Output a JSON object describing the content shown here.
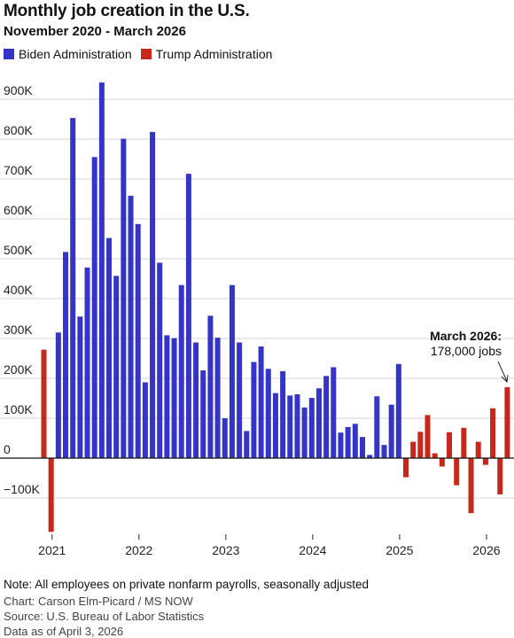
{
  "header": {
    "title": "Monthly job creation in the U.S.",
    "subtitle": "November 2020 - March 2026"
  },
  "legend": {
    "biden_label": "Biden Administration",
    "trump_label": "Trump Administration"
  },
  "colors": {
    "biden": "#3434c8",
    "trump": "#c8281c",
    "grid": "#d4d4d4",
    "zero_line": "#111111"
  },
  "annotation": {
    "title": "March 2026:",
    "text": "178,000 jobs"
  },
  "footer": {
    "note": "Note: All employees on private nonfarm payrolls, seasonally adjusted",
    "credit": "Chart: Carson Elm-Picard / MS NOW",
    "source": "Source:  U.S. Bureau of Labor Statistics",
    "as_of": "Data as of April 3, 2026"
  },
  "chart_data": {
    "type": "bar",
    "title": "Monthly job creation in the U.S.",
    "subtitle": "November 2020 - March 2026",
    "ylim": [
      -190000,
      960000
    ],
    "yticks": [
      -100000,
      0,
      100000,
      200000,
      300000,
      400000,
      500000,
      600000,
      700000,
      800000,
      900000
    ],
    "ytick_labels": [
      "−100K",
      "0",
      "100K",
      "200K",
      "300K",
      "400K",
      "500K",
      "600K",
      "700K",
      "800K",
      "900K"
    ],
    "x_tick_labels": [
      "2021",
      "2022",
      "2023",
      "2024",
      "2025",
      "2026"
    ],
    "grid": true,
    "legend_position": "top-left",
    "x": [
      "2020-11",
      "2020-12",
      "2021-01",
      "2021-02",
      "2021-03",
      "2021-04",
      "2021-05",
      "2021-06",
      "2021-07",
      "2021-08",
      "2021-09",
      "2021-10",
      "2021-11",
      "2021-12",
      "2022-01",
      "2022-02",
      "2022-03",
      "2022-04",
      "2022-05",
      "2022-06",
      "2022-07",
      "2022-08",
      "2022-09",
      "2022-10",
      "2022-11",
      "2022-12",
      "2023-01",
      "2023-02",
      "2023-03",
      "2023-04",
      "2023-05",
      "2023-06",
      "2023-07",
      "2023-08",
      "2023-09",
      "2023-10",
      "2023-11",
      "2023-12",
      "2024-01",
      "2024-02",
      "2024-03",
      "2024-04",
      "2024-05",
      "2024-06",
      "2024-07",
      "2024-08",
      "2024-09",
      "2024-10",
      "2024-11",
      "2024-12",
      "2025-01",
      "2025-02",
      "2025-03",
      "2025-04",
      "2025-05",
      "2025-06",
      "2025-07",
      "2025-08",
      "2025-09",
      "2025-10",
      "2025-11",
      "2025-12",
      "2026-01",
      "2026-02",
      "2026-03"
    ],
    "series": [
      {
        "name": "Biden Administration",
        "color": "#3434c8",
        "values": [
          272000,
          -185000,
          315000,
          517000,
          853000,
          355000,
          478000,
          755000,
          942000,
          552000,
          457000,
          801000,
          658000,
          587000,
          190000,
          818000,
          490000,
          308000,
          301000,
          434000,
          713000,
          290000,
          220000,
          357000,
          302000,
          100000,
          434000,
          290000,
          68000,
          241000,
          280000,
          224000,
          163000,
          218000,
          157000,
          160000,
          127000,
          151000,
          175000,
          206000,
          228000,
          64000,
          78000,
          86000,
          53000,
          8000,
          155000,
          33000,
          134000,
          236000,
          null,
          null,
          null,
          null,
          null,
          null,
          null,
          null,
          null,
          null,
          null,
          null,
          null,
          null,
          null
        ]
      },
      {
        "name": "Trump Administration",
        "color": "#c8281c",
        "values": [
          272000,
          -185000,
          null,
          null,
          null,
          null,
          null,
          null,
          null,
          null,
          null,
          null,
          null,
          null,
          null,
          null,
          null,
          null,
          null,
          null,
          null,
          null,
          null,
          null,
          null,
          null,
          null,
          null,
          null,
          null,
          null,
          null,
          null,
          null,
          null,
          null,
          null,
          null,
          null,
          null,
          null,
          null,
          null,
          null,
          null,
          null,
          null,
          null,
          null,
          null,
          -48000,
          41000,
          66000,
          108000,
          12000,
          -21000,
          65000,
          -68000,
          76000,
          -138000,
          41000,
          -17000,
          125000,
          -91000,
          178000
        ]
      }
    ]
  }
}
